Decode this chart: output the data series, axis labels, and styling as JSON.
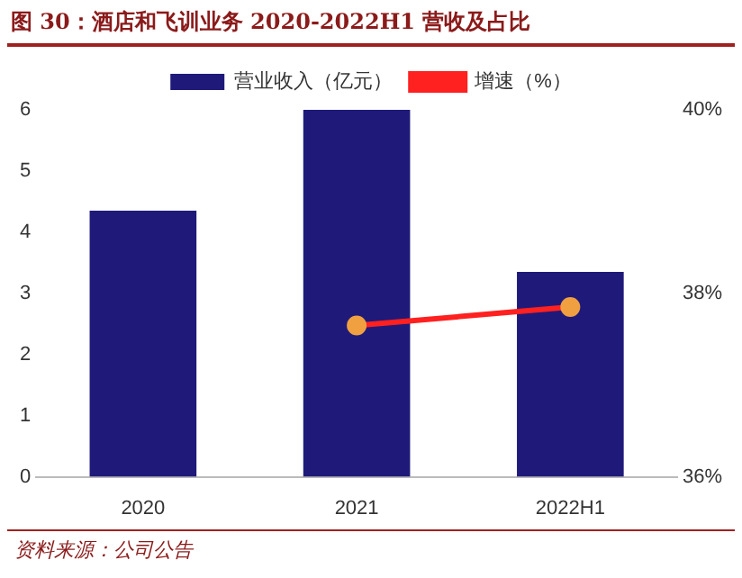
{
  "chart_data": {
    "type": "bar",
    "title": "图 30：酒店和飞训业务 2020-2022H1 营收及占比",
    "categories": [
      "2020",
      "2021",
      "2022H1"
    ],
    "series": [
      {
        "name": "营业收入（亿元）",
        "color": "#1f1a7a",
        "values": [
          4.35,
          6.0,
          3.35
        ]
      },
      {
        "name": "增速（%）",
        "type": "line",
        "axis": "y2",
        "color": "#ff2020",
        "values": [
          null,
          37.65,
          37.85
        ]
      }
    ],
    "ylim": [
      0,
      6
    ],
    "yticks": [
      0,
      1,
      2,
      3,
      4,
      5,
      6
    ],
    "y2lim": [
      36,
      40
    ],
    "y2ticks": [
      {
        "value": 36,
        "label": "36%"
      },
      {
        "value": 38,
        "label": "38%"
      },
      {
        "value": 40,
        "label": "40%"
      }
    ],
    "legend": "top",
    "marker": "circle",
    "grid": false,
    "annotations": [
      "资料来源：公司公告"
    ]
  }
}
